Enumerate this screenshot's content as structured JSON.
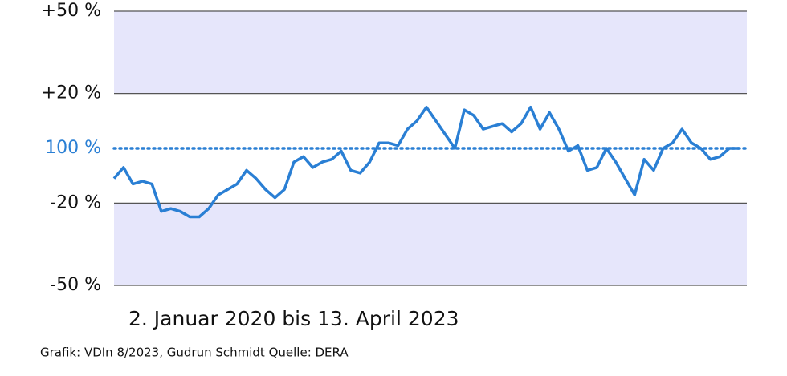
{
  "chart_data": {
    "type": "line",
    "x_label": "2. Januar 2020 bis 13. April 2023",
    "source": "Grafik: VDIn 8/2023, Gudrun Schmidt Quelle: DERA",
    "ylim": [
      -50,
      50
    ],
    "yticks": [
      {
        "value": 50,
        "label": "+50 %"
      },
      {
        "value": 20,
        "label": "+20 %"
      },
      {
        "value": 0,
        "label": "100 %"
      },
      {
        "value": -20,
        "label": "-20 %"
      },
      {
        "value": -50,
        "label": "-50 %"
      }
    ],
    "color": "#2a7fd4",
    "values": [
      -11,
      -7,
      -13,
      -12,
      -13,
      -23,
      -22,
      -23,
      -25,
      -25,
      -22,
      -17,
      -15,
      -13,
      -8,
      -11,
      -15,
      -18,
      -15,
      -5,
      -3,
      -7,
      -5,
      -4,
      -1,
      -8,
      -9,
      -5,
      2,
      2,
      1,
      7,
      10,
      15,
      10,
      5,
      0,
      14,
      12,
      7,
      8,
      9,
      6,
      9,
      15,
      7,
      13,
      7,
      -1,
      1,
      -8,
      -7,
      0,
      -5,
      -11,
      -17,
      -4,
      -8,
      0,
      2,
      7,
      2,
      0,
      -4,
      -3,
      0,
      0
    ]
  }
}
